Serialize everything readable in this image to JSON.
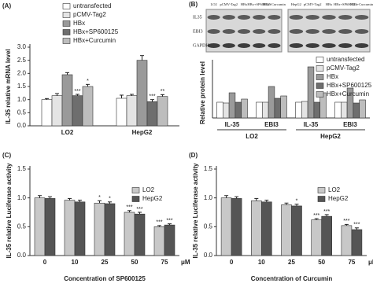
{
  "chart_data": [
    {
      "type": "bar",
      "panel_label": "(A)",
      "ylabel": "IL-35 relative mRNA level",
      "categories": [
        "LO2",
        "HepG2"
      ],
      "series": [
        {
          "name": "untransfected",
          "color": "#ffffff",
          "values": [
            1.0,
            1.05
          ],
          "errors": [
            0.04,
            0.12
          ],
          "significance": [
            null,
            null
          ]
        },
        {
          "name": "pCMV-Tag2",
          "color": "#e4e4e4",
          "values": [
            1.15,
            1.15
          ],
          "errors": [
            0.08,
            0.05
          ],
          "significance": [
            null,
            null
          ]
        },
        {
          "name": "HBx",
          "color": "#9a9a9a",
          "values": [
            1.95,
            2.5
          ],
          "errors": [
            0.08,
            0.18
          ],
          "significance": [
            null,
            null
          ]
        },
        {
          "name": "HBx+SP600125",
          "color": "#6e6e6e",
          "values": [
            1.15,
            0.92
          ],
          "errors": [
            0.05,
            0.08
          ],
          "significance": [
            "***",
            "***"
          ]
        },
        {
          "name": "HBx+Curcumin",
          "color": "#bdbdbd",
          "values": [
            1.5,
            1.12
          ],
          "errors": [
            0.08,
            0.07
          ],
          "significance": [
            "*",
            "**"
          ]
        }
      ],
      "ylim": [
        0,
        3
      ],
      "yticks": [
        {
          "value": 0,
          "label": "0.0"
        },
        {
          "value": 0.5,
          "label": "0.5"
        },
        {
          "value": 1,
          "label": "1.0"
        },
        {
          "value": 1.5,
          "label": "1.5"
        },
        {
          "value": 2,
          "label": "2.0"
        },
        {
          "value": 2.5,
          "label": "2.5"
        },
        {
          "value": 3,
          "label": "3.0"
        }
      ]
    },
    {
      "type": "bar",
      "panel_label": "(B)",
      "ylabel": "Relative protein level",
      "categories": [
        "IL-35",
        "EBI3",
        "IL-35",
        "EBI3"
      ],
      "group_labels": [
        "LO2",
        "HepG2"
      ],
      "series": [
        {
          "name": "untransfected",
          "color": "#ffffff",
          "values": [
            1.0,
            1.0,
            1.0,
            1.0
          ]
        },
        {
          "name": "pCMV-Tag2",
          "color": "#e4e4e4",
          "values": [
            0.95,
            1.0,
            1.05,
            1.0
          ]
        },
        {
          "name": "HBx",
          "color": "#9a9a9a",
          "values": [
            1.6,
            2.0,
            3.25,
            1.9
          ]
        },
        {
          "name": "HBx+SP600125",
          "color": "#6e6e6e",
          "values": [
            1.0,
            1.25,
            1.0,
            0.95
          ]
        },
        {
          "name": "HBx+Curcumin",
          "color": "#bdbdbd",
          "values": [
            1.2,
            1.4,
            1.6,
            1.15
          ]
        }
      ],
      "ylim": [
        0,
        3.5
      ]
    },
    {
      "type": "bar",
      "panel_label": "(C)",
      "ylabel": "IL-35 relative Luciferase activity",
      "xlabel": "Concentration of SP600125",
      "x_unit": "μM",
      "categories": [
        "0",
        "10",
        "25",
        "50",
        "75"
      ],
      "series": [
        {
          "name": "LO2",
          "color": "#c8c8c8",
          "values": [
            1.0,
            0.96,
            0.91,
            0.75,
            0.5
          ],
          "errors": [
            0.04,
            0.03,
            0.04,
            0.03,
            0.02
          ],
          "significance": [
            null,
            null,
            "*",
            "***",
            "***"
          ]
        },
        {
          "name": "HepG2",
          "color": "#555555",
          "values": [
            0.99,
            0.93,
            0.9,
            0.72,
            0.53
          ],
          "errors": [
            0.03,
            0.03,
            0.03,
            0.03,
            0.02
          ],
          "significance": [
            null,
            null,
            "*",
            "***",
            "***"
          ]
        }
      ],
      "ylim": [
        0,
        1.5
      ],
      "yticks": [
        {
          "value": 0,
          "label": "0.0"
        },
        {
          "value": 0.5,
          "label": "0.5"
        },
        {
          "value": 1,
          "label": "1.0"
        },
        {
          "value": 1.5,
          "label": "1.5"
        }
      ]
    },
    {
      "type": "bar",
      "panel_label": "(D)",
      "ylabel": "IL-35 relative Luciferase activity",
      "xlabel": "Concentration of Curcumin",
      "x_unit": "μM",
      "categories": [
        "0",
        "10",
        "25",
        "50",
        "75"
      ],
      "series": [
        {
          "name": "LO2",
          "color": "#c8c8c8",
          "values": [
            1.0,
            0.95,
            0.88,
            0.62,
            0.52
          ],
          "errors": [
            0.04,
            0.04,
            0.03,
            0.02,
            0.02
          ],
          "significance": [
            null,
            null,
            null,
            "***",
            "***"
          ]
        },
        {
          "name": "HepG2",
          "color": "#555555",
          "values": [
            0.99,
            0.93,
            0.86,
            0.68,
            0.45
          ],
          "errors": [
            0.03,
            0.03,
            0.03,
            0.03,
            0.03
          ],
          "significance": [
            null,
            null,
            "*",
            "***",
            "***"
          ]
        }
      ],
      "ylim": [
        0,
        1.5
      ],
      "yticks": [
        {
          "value": 0,
          "label": "0.0"
        },
        {
          "value": 0.5,
          "label": "0.5"
        },
        {
          "value": 1,
          "label": "1.0"
        },
        {
          "value": 1.5,
          "label": "1.5"
        }
      ]
    }
  ],
  "blot": {
    "cell_lines": [
      "LO2",
      "HepG2"
    ],
    "lanes": [
      "pCMV-Tag2",
      "HBx",
      "HBx+SP600125",
      "HBx+Curcumin"
    ],
    "bands": [
      "IL35",
      "EBI3",
      "GAPDH"
    ]
  }
}
